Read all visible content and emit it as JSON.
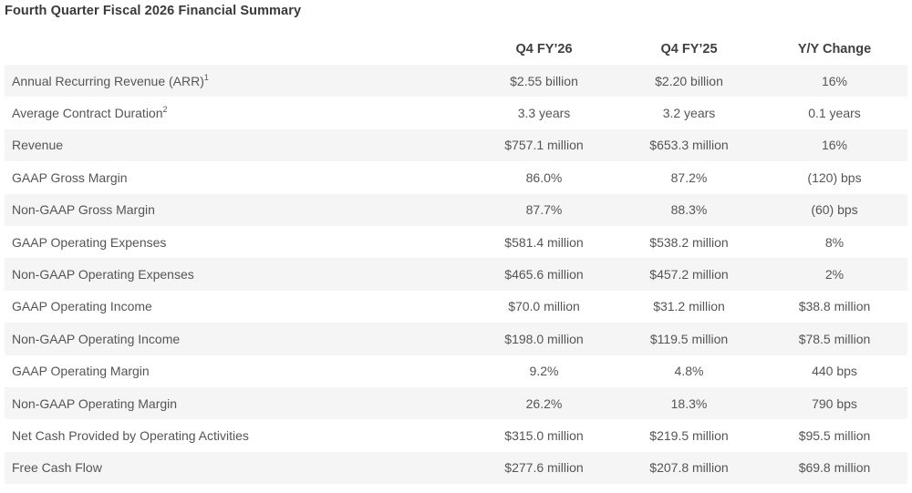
{
  "title": "Fourth Quarter Fiscal 2026 Financial Summary",
  "columns": [
    "",
    "Q4 FY’26",
    "Q4 FY’25",
    "Y/Y Change"
  ],
  "rows": [
    {
      "metric": "Annual Recurring Revenue (ARR)",
      "sup": "1",
      "q4_fy26": "$2.55 billion",
      "q4_fy25": "$2.20 billion",
      "change": "16%"
    },
    {
      "metric": "Average Contract Duration",
      "sup": "2",
      "q4_fy26": "3.3 years",
      "q4_fy25": "3.2 years",
      "change": "0.1 years"
    },
    {
      "metric": "Revenue",
      "sup": "",
      "q4_fy26": "$757.1 million",
      "q4_fy25": "$653.3 million",
      "change": "16%"
    },
    {
      "metric": "GAAP Gross Margin",
      "sup": "",
      "q4_fy26": "86.0%",
      "q4_fy25": "87.2%",
      "change": "(120) bps"
    },
    {
      "metric": "Non-GAAP Gross Margin",
      "sup": "",
      "q4_fy26": "87.7%",
      "q4_fy25": "88.3%",
      "change": "(60) bps"
    },
    {
      "metric": "GAAP Operating Expenses",
      "sup": "",
      "q4_fy26": "$581.4 million",
      "q4_fy25": "$538.2 million",
      "change": "8%"
    },
    {
      "metric": "Non-GAAP Operating Expenses",
      "sup": "",
      "q4_fy26": "$465.6 million",
      "q4_fy25": "$457.2 million",
      "change": "2%"
    },
    {
      "metric": "GAAP Operating Income",
      "sup": "",
      "q4_fy26": "$70.0 million",
      "q4_fy25": "$31.2 million",
      "change": "$38.8 million"
    },
    {
      "metric": "Non-GAAP Operating Income",
      "sup": "",
      "q4_fy26": "$198.0 million",
      "q4_fy25": "$119.5 million",
      "change": "$78.5 million"
    },
    {
      "metric": "GAAP Operating Margin",
      "sup": "",
      "q4_fy26": "9.2%",
      "q4_fy25": "4.8%",
      "change": "440 bps"
    },
    {
      "metric": "Non-GAAP Operating Margin",
      "sup": "",
      "q4_fy26": "26.2%",
      "q4_fy25": "18.3%",
      "change": "790 bps"
    },
    {
      "metric": "Net Cash Provided by Operating Activities",
      "sup": "",
      "q4_fy26": "$315.0 million",
      "q4_fy25": "$219.5 million",
      "change": "$95.5 million"
    },
    {
      "metric": "Free Cash Flow",
      "sup": "",
      "q4_fy26": "$277.6 million",
      "q4_fy25": "$207.8 million",
      "change": "$69.8 million"
    }
  ]
}
